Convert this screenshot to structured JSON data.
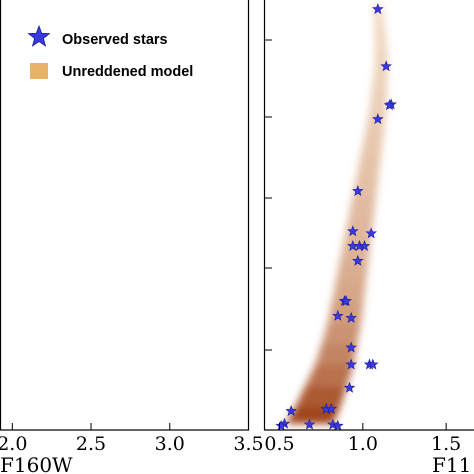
{
  "chart_data": [
    {
      "type": "scatter",
      "panel": "left",
      "xlabel": "F160W",
      "xlim": [
        1.925,
        3.5
      ],
      "x_ticks": [
        "2.0",
        "2.5",
        "3.0",
        "3.5"
      ],
      "x_tick_values": [
        2.0,
        2.5,
        3.0,
        3.5
      ],
      "legend": {
        "placement": "top-right",
        "entries": [
          {
            "label": "Observed stars",
            "marker": "star",
            "color": "#3a3ae0"
          },
          {
            "label": "Unreddened model",
            "marker": "square",
            "color": "#e8b26a"
          }
        ]
      },
      "series": []
    },
    {
      "type": "scatter",
      "panel": "right",
      "xlabel": "F11",
      "xlim": [
        0.41,
        1.7
      ],
      "ylim": [
        0,
        100
      ],
      "x_ticks": [
        "0.5",
        "1.0",
        "1.5"
      ],
      "x_tick_values": [
        0.5,
        1.0,
        1.5
      ],
      "series": [
        {
          "name": "Observed stars",
          "marker": "star",
          "color": "#3a3ae0",
          "points": [
            {
              "x": 1.09,
              "y": 99.0
            },
            {
              "x": 1.14,
              "y": 85.5
            },
            {
              "x": 1.17,
              "y": 76.5
            },
            {
              "x": 1.16,
              "y": 76.3
            },
            {
              "x": 1.09,
              "y": 73.0
            },
            {
              "x": 0.97,
              "y": 56.0
            },
            {
              "x": 0.94,
              "y": 46.5
            },
            {
              "x": 1.05,
              "y": 46.0
            },
            {
              "x": 0.94,
              "y": 43.0
            },
            {
              "x": 0.98,
              "y": 43.0
            },
            {
              "x": 1.01,
              "y": 43.0
            },
            {
              "x": 0.97,
              "y": 39.5
            },
            {
              "x": 0.89,
              "y": 30.0
            },
            {
              "x": 0.9,
              "y": 30.0
            },
            {
              "x": 0.85,
              "y": 26.5
            },
            {
              "x": 0.93,
              "y": 26.0
            },
            {
              "x": 0.93,
              "y": 19.0
            },
            {
              "x": 0.93,
              "y": 15.0
            },
            {
              "x": 1.04,
              "y": 15.0
            },
            {
              "x": 1.06,
              "y": 15.0
            },
            {
              "x": 0.92,
              "y": 9.5
            },
            {
              "x": 0.57,
              "y": 4.0
            },
            {
              "x": 0.78,
              "y": 4.5
            },
            {
              "x": 0.81,
              "y": 4.5
            },
            {
              "x": 0.53,
              "y": 1.0
            },
            {
              "x": 0.51,
              "y": 0.5
            },
            {
              "x": 0.68,
              "y": 0.8
            },
            {
              "x": 0.82,
              "y": 0.8
            },
            {
              "x": 0.85,
              "y": 0.5
            }
          ]
        }
      ],
      "model_density": {
        "name": "Unreddened model",
        "color": "#e8b26a",
        "band": [
          {
            "y": 100,
            "x": 1.09,
            "width": 0.05,
            "density": 0.1
          },
          {
            "y": 95,
            "x": 1.1,
            "width": 0.06,
            "density": 0.12
          },
          {
            "y": 90,
            "x": 1.11,
            "width": 0.07,
            "density": 0.14
          },
          {
            "y": 85,
            "x": 1.11,
            "width": 0.08,
            "density": 0.15
          },
          {
            "y": 80,
            "x": 1.1,
            "width": 0.09,
            "density": 0.16
          },
          {
            "y": 75,
            "x": 1.09,
            "width": 0.1,
            "density": 0.18
          },
          {
            "y": 70,
            "x": 1.07,
            "width": 0.11,
            "density": 0.2
          },
          {
            "y": 65,
            "x": 1.05,
            "width": 0.12,
            "density": 0.22
          },
          {
            "y": 60,
            "x": 1.03,
            "width": 0.13,
            "density": 0.24
          },
          {
            "y": 55,
            "x": 1.01,
            "width": 0.14,
            "density": 0.26
          },
          {
            "y": 50,
            "x": 0.99,
            "width": 0.15,
            "density": 0.28
          },
          {
            "y": 45,
            "x": 0.97,
            "width": 0.16,
            "density": 0.3
          },
          {
            "y": 40,
            "x": 0.95,
            "width": 0.17,
            "density": 0.33
          },
          {
            "y": 35,
            "x": 0.93,
            "width": 0.18,
            "density": 0.36
          },
          {
            "y": 30,
            "x": 0.91,
            "width": 0.19,
            "density": 0.4
          },
          {
            "y": 25,
            "x": 0.89,
            "width": 0.2,
            "density": 0.45
          },
          {
            "y": 20,
            "x": 0.86,
            "width": 0.21,
            "density": 0.52
          },
          {
            "y": 15,
            "x": 0.83,
            "width": 0.23,
            "density": 0.6
          },
          {
            "y": 10,
            "x": 0.78,
            "width": 0.25,
            "density": 0.72
          },
          {
            "y": 5,
            "x": 0.73,
            "width": 0.27,
            "density": 0.85
          },
          {
            "y": 1,
            "x": 0.68,
            "width": 0.28,
            "density": 0.95
          }
        ]
      }
    }
  ]
}
